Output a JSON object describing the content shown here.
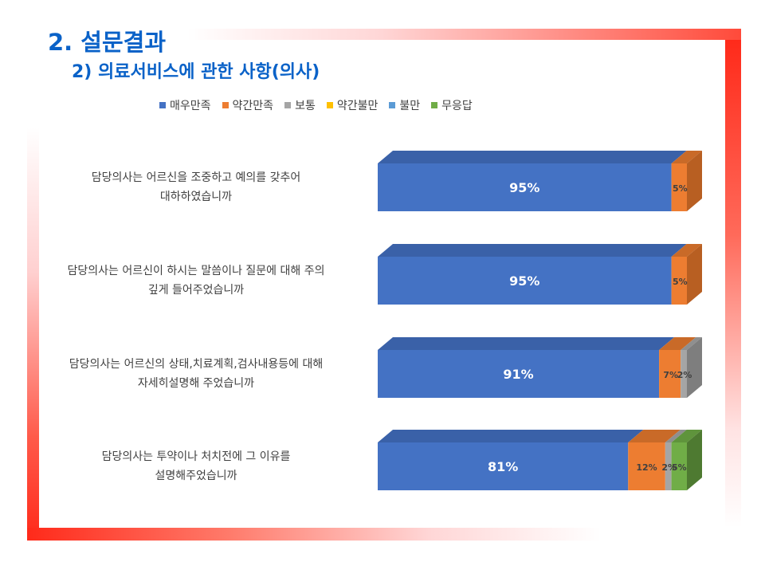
{
  "slide": {
    "title": "2. 설문결과",
    "subtitle": "2) 의료서비스에 관한 사항(의사)"
  },
  "colors": {
    "frame": "#ff2a1a",
    "title": "#0a62c8"
  },
  "chart_data": {
    "type": "bar",
    "orientation": "horizontal",
    "stacked": true,
    "percent_stacked": true,
    "three_d": true,
    "legend_position": "top",
    "categories": [
      [
        "담당의사는 어르신을 조중하고 예의를 갖추어",
        "대하하였습니까"
      ],
      [
        "담당의사는 어르신이 하시는 말씀이나 질문에 대해 주의",
        "깊게 들어주었습니까"
      ],
      [
        "담당의사는 어르신의 상태,치료계획,검사내용등에 대해",
        "자세히설명해 주었습니까"
      ],
      [
        "담당의사는 투약이나 처치전에 그 이유를",
        "설명해주었습니까"
      ]
    ],
    "series": [
      {
        "name": "매우만족",
        "color": "#4472c4",
        "side": "#2f5597",
        "top": "#3a61a8",
        "values": [
          95,
          95,
          91,
          81
        ],
        "labels": [
          "95%",
          "95%",
          "91%",
          "81%"
        ]
      },
      {
        "name": "약간만족",
        "color": "#ed7d31",
        "side": "#b85f22",
        "top": "#c96a28",
        "values": [
          5,
          5,
          7,
          12
        ],
        "labels": [
          "5%",
          "5%",
          "7%",
          "12%"
        ]
      },
      {
        "name": "보통",
        "color": "#a5a5a5",
        "side": "#7e7e7e",
        "top": "#8f8f8f",
        "values": [
          0,
          0,
          2,
          2
        ],
        "labels": [
          "",
          "",
          "2%",
          "2%"
        ]
      },
      {
        "name": "약간불만",
        "color": "#ffc000",
        "side": "#c49300",
        "top": "#d9a400",
        "values": [
          0,
          0,
          0,
          0
        ],
        "labels": [
          "",
          "",
          "",
          ""
        ]
      },
      {
        "name": "불만",
        "color": "#5b9bd5",
        "side": "#4178a8",
        "top": "#4f88bb",
        "values": [
          0,
          0,
          0,
          0
        ],
        "labels": [
          "",
          "",
          "",
          ""
        ]
      },
      {
        "name": "무응답",
        "color": "#70ad47",
        "side": "#4e7a31",
        "top": "#5f943c",
        "values": [
          0,
          0,
          0,
          5
        ],
        "labels": [
          "",
          "",
          "",
          "5%"
        ]
      }
    ],
    "xlim": [
      0,
      100
    ]
  }
}
